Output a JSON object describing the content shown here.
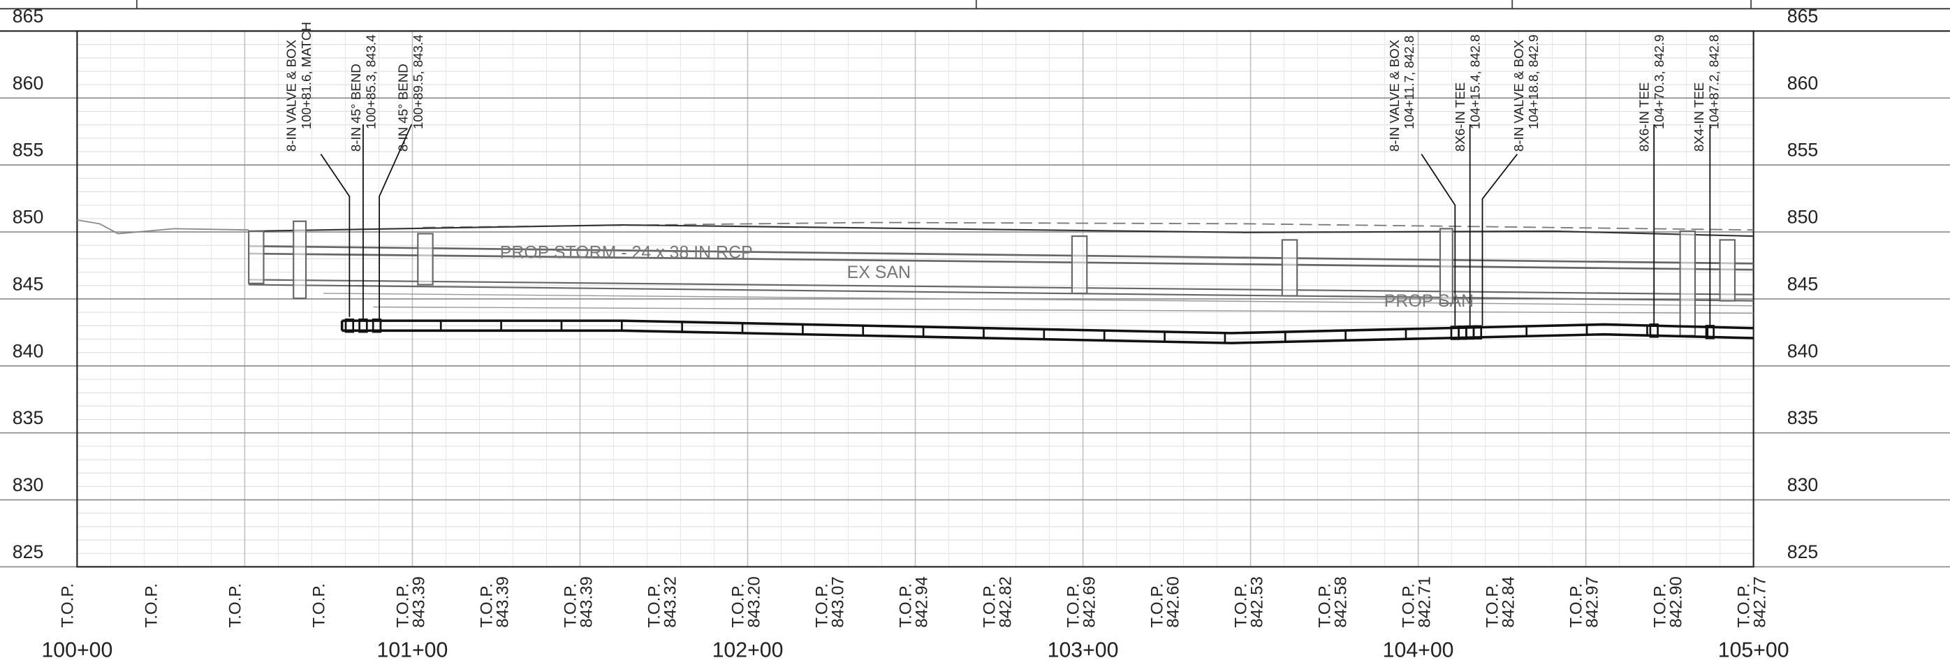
{
  "elevations": [
    865,
    860,
    855,
    850,
    845,
    840,
    835,
    830,
    825
  ],
  "stations": [
    "100+00",
    "101+00",
    "102+00",
    "103+00",
    "104+00",
    "105+00"
  ],
  "top_labels": [
    {
      "label": "T.O.P."
    },
    {
      "label": "T.O.P."
    },
    {
      "label": "T.O.P."
    },
    {
      "label": "T.O.P."
    },
    {
      "label": "T.O.P.",
      "elevation": "843.39"
    },
    {
      "label": "T.O.P.",
      "elevation": "843.39"
    },
    {
      "label": "T.O.P.",
      "elevation": "843.39"
    },
    {
      "label": "T.O.P.",
      "elevation": "843.32"
    },
    {
      "label": "T.O.P.",
      "elevation": "843.20"
    },
    {
      "label": "T.O.P.",
      "elevation": "843.07"
    },
    {
      "label": "T.O.P.",
      "elevation": "842.94"
    },
    {
      "label": "T.O.P.",
      "elevation": "842.82"
    },
    {
      "label": "T.O.P.",
      "elevation": "842.69"
    },
    {
      "label": "T.O.P.",
      "elevation": "842.60"
    },
    {
      "label": "T.O.P.",
      "elevation": "842.53"
    },
    {
      "label": "T.O.P.",
      "elevation": "842.58"
    },
    {
      "label": "T.O.P.",
      "elevation": "842.71"
    },
    {
      "label": "T.O.P.",
      "elevation": "842.84"
    },
    {
      "label": "T.O.P.",
      "elevation": "842.97"
    },
    {
      "label": "T.O.P.",
      "elevation": "842.90"
    },
    {
      "label": "T.O.P.",
      "elevation": "842.77"
    }
  ],
  "callouts": [
    {
      "line1": "8-IN VALVE & BOX",
      "line2": "100+81.6, MATCH"
    },
    {
      "line1": "8-IN 45° BEND",
      "line2": "100+85.3, 843.4"
    },
    {
      "line1": "8-IN 45° BEND",
      "line2": "100+89.5, 843.4"
    },
    {
      "line1": "8-IN VALVE & BOX",
      "line2": "104+11.7, 842.8"
    },
    {
      "line1": "8X6-IN TEE",
      "line2": "104+15.4, 842.8"
    },
    {
      "line1": "8-IN VALVE & BOX",
      "line2": "104+18.8, 842.9"
    },
    {
      "line1": "8X6-IN TEE",
      "line2": "104+70.3, 842.9"
    },
    {
      "line1": "8X4-IN TEE",
      "line2": "104+87.2, 842.8"
    }
  ],
  "annotations": {
    "prop_storm": "PROP STORM - 24 x 38 IN RCP",
    "ex_san": "EX SAN",
    "prop_san": "PROP SAN"
  }
}
